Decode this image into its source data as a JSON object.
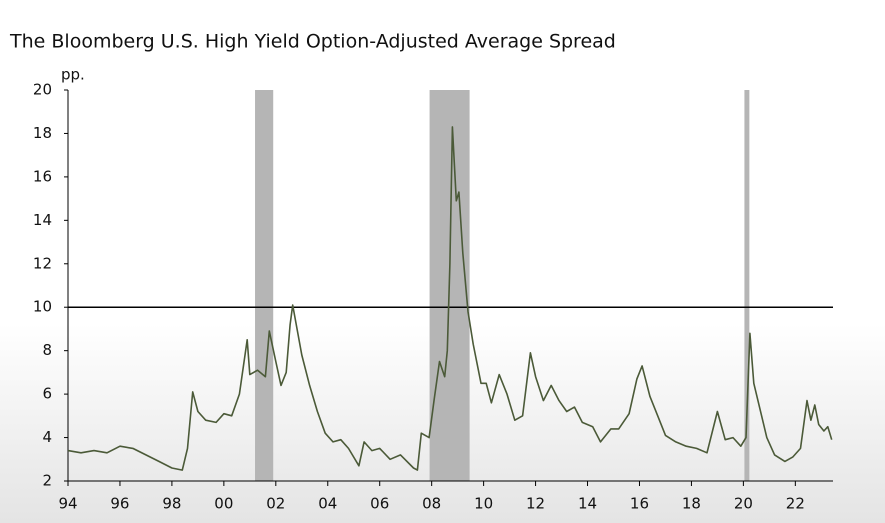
{
  "chart_data": {
    "type": "line",
    "title": "The Bloomberg U.S. High Yield Option-Adjusted Average Spread",
    "y_unit": "pp.",
    "color": "#4b5a38",
    "band_color": "#b5b5b5",
    "reference_line": 10,
    "recession_bands": [
      [
        2001.2,
        2001.9
      ],
      [
        2007.92,
        2009.46
      ],
      [
        2020.04,
        2020.23
      ]
    ],
    "x": [
      1994.0,
      1994.5,
      1995.0,
      1995.5,
      1996.0,
      1996.5,
      1997.0,
      1997.5,
      1998.0,
      1998.4,
      1998.6,
      1998.8,
      1999.0,
      1999.3,
      1999.7,
      2000.0,
      2000.3,
      2000.6,
      2000.9,
      2001.0,
      2001.3,
      2001.6,
      2001.75,
      2002.0,
      2002.2,
      2002.4,
      2002.55,
      2002.65,
      2003.0,
      2003.3,
      2003.6,
      2003.9,
      2004.2,
      2004.5,
      2004.8,
      2005.2,
      2005.4,
      2005.7,
      2006.0,
      2006.4,
      2006.8,
      2007.3,
      2007.45,
      2007.6,
      2007.9,
      2008.1,
      2008.3,
      2008.5,
      2008.6,
      2008.7,
      2008.8,
      2008.95,
      2009.05,
      2009.2,
      2009.4,
      2009.6,
      2009.9,
      2010.1,
      2010.3,
      2010.6,
      2010.9,
      2011.2,
      2011.5,
      2011.8,
      2012.0,
      2012.3,
      2012.6,
      2012.9,
      2013.2,
      2013.5,
      2013.8,
      2014.2,
      2014.5,
      2014.9,
      2015.2,
      2015.6,
      2015.9,
      2016.1,
      2016.4,
      2016.7,
      2017.0,
      2017.4,
      2017.8,
      2018.2,
      2018.6,
      2019.0,
      2019.3,
      2019.6,
      2019.9,
      2020.1,
      2020.25,
      2020.4,
      2020.7,
      2020.9,
      2021.2,
      2021.6,
      2021.9,
      2022.2,
      2022.45,
      2022.6,
      2022.75,
      2022.9,
      2023.1,
      2023.25,
      2023.4
    ],
    "values": [
      3.4,
      3.3,
      3.4,
      3.3,
      3.6,
      3.5,
      3.2,
      2.9,
      2.6,
      2.5,
      3.5,
      6.1,
      5.2,
      4.8,
      4.7,
      5.1,
      5.0,
      6.0,
      8.5,
      6.9,
      7.1,
      6.8,
      8.9,
      7.5,
      6.4,
      7.0,
      9.2,
      10.1,
      7.8,
      6.4,
      5.2,
      4.2,
      3.8,
      3.9,
      3.5,
      2.7,
      3.8,
      3.4,
      3.5,
      3.0,
      3.2,
      2.6,
      2.5,
      4.2,
      4.0,
      5.8,
      7.5,
      6.8,
      8.0,
      12.0,
      18.3,
      14.9,
      15.3,
      12.5,
      9.8,
      8.3,
      6.5,
      6.5,
      5.6,
      6.9,
      6.0,
      4.8,
      5.0,
      7.9,
      6.8,
      5.7,
      6.4,
      5.7,
      5.2,
      5.4,
      4.7,
      4.5,
      3.8,
      4.4,
      4.4,
      5.1,
      6.7,
      7.3,
      5.9,
      5.0,
      4.1,
      3.8,
      3.6,
      3.5,
      3.3,
      5.2,
      3.9,
      4.0,
      3.6,
      4.0,
      8.8,
      6.5,
      5.0,
      4.0,
      3.2,
      2.9,
      3.1,
      3.5,
      5.7,
      4.8,
      5.5,
      4.6,
      4.3,
      4.5,
      3.9
    ],
    "xlim": [
      1994,
      2023.45
    ],
    "ylim": [
      2,
      20
    ],
    "yticks": [
      2,
      4,
      6,
      8,
      10,
      12,
      14,
      16,
      18,
      20
    ],
    "xticks": [
      {
        "value": 1994,
        "label": "94"
      },
      {
        "value": 1996,
        "label": "96"
      },
      {
        "value": 1998,
        "label": "98"
      },
      {
        "value": 2000,
        "label": "00"
      },
      {
        "value": 2002,
        "label": "02"
      },
      {
        "value": 2004,
        "label": "04"
      },
      {
        "value": 2006,
        "label": "06"
      },
      {
        "value": 2008,
        "label": "08"
      },
      {
        "value": 2010,
        "label": "10"
      },
      {
        "value": 2012,
        "label": "12"
      },
      {
        "value": 2014,
        "label": "14"
      },
      {
        "value": 2016,
        "label": "16"
      },
      {
        "value": 2018,
        "label": "18"
      },
      {
        "value": 2020,
        "label": "20"
      },
      {
        "value": 2022,
        "label": "22"
      }
    ]
  }
}
